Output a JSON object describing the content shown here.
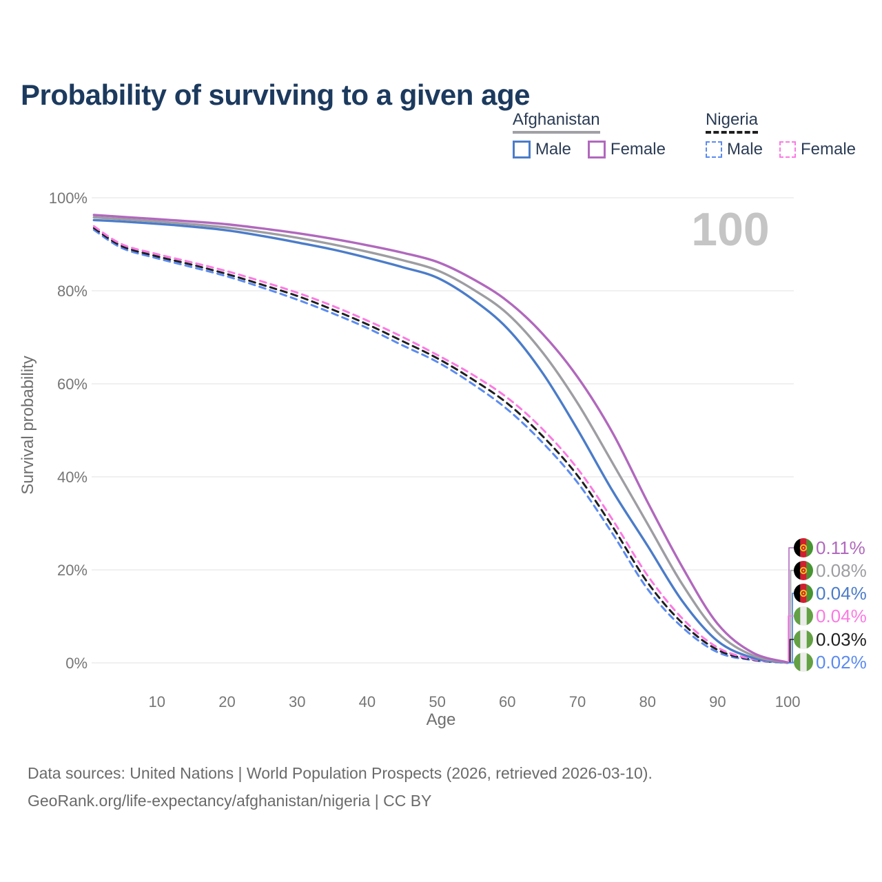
{
  "title": "Probability of surviving to a given age",
  "watermark_age_label": "100",
  "legend": {
    "groups": [
      {
        "name": "Afghanistan",
        "underline_style": "solid",
        "underline_color": "#a0a0a5",
        "items": [
          {
            "label": "Male",
            "color": "#4b7cc9",
            "dashed": false
          },
          {
            "label": "Female",
            "color": "#b168bd",
            "dashed": false
          }
        ]
      },
      {
        "name": "Nigeria",
        "underline_style": "dashed",
        "underline_color": "#1f1f1f",
        "items": [
          {
            "label": "Male",
            "color": "#5b8bf0",
            "dashed": true
          },
          {
            "label": "Female",
            "color": "#fb7ae2",
            "dashed": true
          }
        ]
      }
    ]
  },
  "chart_data": {
    "type": "line",
    "title": "Probability of surviving to a given age",
    "xlabel": "Age",
    "ylabel": "Survival probability",
    "xlim": [
      1,
      100
    ],
    "ylim": [
      0,
      100
    ],
    "grid": "horizontal",
    "legend_position": "top-right",
    "x_ticks": [
      10,
      20,
      30,
      40,
      50,
      60,
      70,
      80,
      90,
      100
    ],
    "y_ticks": [
      {
        "value": 0,
        "label": "0%"
      },
      {
        "value": 20,
        "label": "20%"
      },
      {
        "value": 40,
        "label": "40%"
      },
      {
        "value": 60,
        "label": "60%"
      },
      {
        "value": 80,
        "label": "80%"
      },
      {
        "value": 100,
        "label": "100%"
      }
    ],
    "hover_age": "100",
    "ages": [
      1,
      5,
      10,
      15,
      20,
      25,
      30,
      35,
      40,
      45,
      50,
      55,
      60,
      65,
      70,
      75,
      80,
      85,
      90,
      95,
      100
    ],
    "series": [
      {
        "name": "Afghanistan Female",
        "country": "afghanistan",
        "sex": "female",
        "color": "#b168bd",
        "dash": false,
        "values": [
          96.3,
          95.9,
          95.4,
          94.9,
          94.3,
          93.4,
          92.4,
          91.2,
          89.8,
          88.2,
          86.2,
          82.6,
          77.8,
          70.8,
          61.5,
          49.5,
          34.6,
          20.5,
          8.4,
          2.2,
          0.11
        ],
        "end_label": "0.11%"
      },
      {
        "name": "Afghanistan Both sexes",
        "country": "afghanistan",
        "sex": "both",
        "color": "#9d9da2",
        "dash": false,
        "values": [
          95.8,
          95.4,
          94.9,
          94.3,
          93.6,
          92.6,
          91.4,
          90.0,
          88.4,
          86.6,
          84.4,
          80.4,
          75.1,
          66.8,
          55.9,
          43.0,
          29.9,
          16.8,
          6.5,
          1.6,
          0.08
        ],
        "end_label": "0.08%"
      },
      {
        "name": "Afghanistan Male",
        "country": "afghanistan",
        "sex": "male",
        "color": "#4b7cc9",
        "dash": false,
        "values": [
          95.2,
          94.9,
          94.4,
          93.8,
          93.0,
          91.8,
          90.4,
          88.9,
          87.1,
          85.1,
          82.8,
          78.2,
          71.9,
          62.4,
          50.2,
          37.0,
          25.2,
          13.2,
          4.7,
          1.1,
          0.04
        ],
        "end_label": "0.04%"
      },
      {
        "name": "Nigeria Female",
        "country": "nigeria",
        "sex": "female",
        "color": "#fb7ae2",
        "dash": true,
        "values": [
          93.9,
          90.0,
          87.9,
          86.1,
          84.2,
          82.0,
          79.6,
          76.8,
          73.6,
          70.1,
          66.2,
          62.0,
          57.0,
          50.3,
          41.8,
          30.8,
          18.8,
          9.5,
          3.3,
          0.8,
          0.04
        ],
        "end_label": "0.04%"
      },
      {
        "name": "Nigeria Both sexes",
        "country": "nigeria",
        "sex": "both",
        "color": "#1f1f1f",
        "dash": true,
        "values": [
          93.5,
          89.6,
          87.4,
          85.6,
          83.6,
          81.3,
          78.9,
          76.0,
          72.8,
          69.2,
          65.5,
          61.0,
          55.8,
          48.8,
          40.3,
          29.3,
          17.3,
          8.5,
          2.8,
          0.7,
          0.03
        ],
        "end_label": "0.03%"
      },
      {
        "name": "Nigeria Male",
        "country": "nigeria",
        "sex": "male",
        "color": "#5b8bf0",
        "dash": true,
        "values": [
          93.1,
          89.2,
          87.0,
          85.1,
          83.1,
          80.7,
          78.1,
          75.2,
          72.0,
          68.3,
          64.7,
          60.0,
          54.5,
          47.4,
          38.8,
          27.8,
          15.9,
          7.6,
          2.3,
          0.6,
          0.02
        ],
        "end_label": "0.02%"
      }
    ]
  },
  "footer": {
    "line1": "Data sources: United Nations | World Population Prospects (2026, retrieved 2026-03-10).",
    "line2": "GeoRank.org/life-expectancy/afghanistan/nigeria | CC BY"
  }
}
